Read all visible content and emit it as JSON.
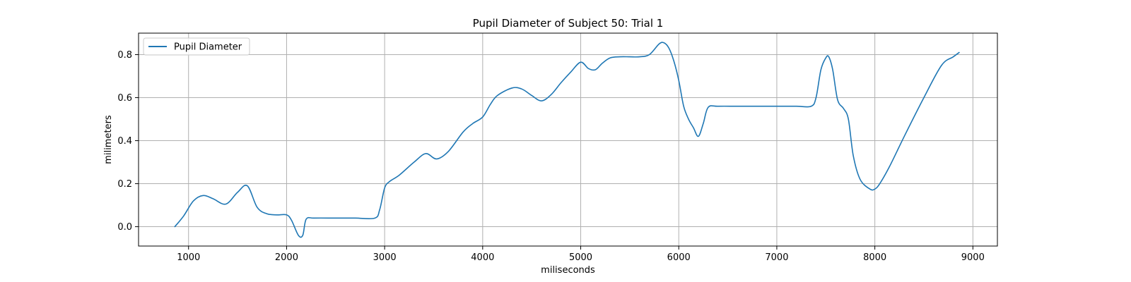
{
  "chart_data": {
    "type": "line",
    "title": "Pupil Diameter of Subject 50: Trial 1",
    "xlabel": "miliseconds",
    "ylabel": "milimeters",
    "xlim": [
      490,
      9250
    ],
    "ylim": [
      -0.09,
      0.9
    ],
    "xticks": [
      1000,
      2000,
      3000,
      4000,
      5000,
      6000,
      7000,
      8000,
      9000
    ],
    "yticks": [
      0.0,
      0.2,
      0.4,
      0.6,
      0.8
    ],
    "xtick_labels": [
      "1000",
      "2000",
      "3000",
      "4000",
      "5000",
      "6000",
      "7000",
      "8000",
      "9000"
    ],
    "ytick_labels": [
      "0.0",
      "0.2",
      "0.4",
      "0.6",
      "0.8"
    ],
    "grid": true,
    "legend_position": "top-left",
    "color": "#1f77b4",
    "series": [
      {
        "name": "Pupil Diameter",
        "x": [
          860,
          950,
          1050,
          1150,
          1250,
          1380,
          1500,
          1600,
          1700,
          1800,
          1900,
          2000,
          2050,
          2120,
          2165,
          2200,
          2280,
          2500,
          2700,
          2900,
          2950,
          3000,
          3050,
          3150,
          3300,
          3420,
          3530,
          3650,
          3800,
          3900,
          4000,
          4080,
          4150,
          4300,
          4400,
          4500,
          4600,
          4700,
          4800,
          4900,
          5000,
          5080,
          5150,
          5220,
          5300,
          5400,
          5500,
          5600,
          5700,
          5800,
          5850,
          5900,
          5950,
          6000,
          6050,
          6100,
          6150,
          6200,
          6250,
          6300,
          6400,
          6600,
          6800,
          7000,
          7200,
          7350,
          7400,
          7450,
          7500,
          7530,
          7570,
          7620,
          7680,
          7730,
          7780,
          7850,
          7950,
          8000,
          8050,
          8150,
          8300,
          8500,
          8680,
          8800,
          8860
        ],
        "y": [
          0.0,
          0.05,
          0.12,
          0.145,
          0.13,
          0.105,
          0.16,
          0.19,
          0.09,
          0.06,
          0.055,
          0.055,
          0.03,
          -0.04,
          -0.04,
          0.035,
          0.04,
          0.04,
          0.04,
          0.04,
          0.08,
          0.18,
          0.21,
          0.24,
          0.3,
          0.34,
          0.315,
          0.35,
          0.44,
          0.48,
          0.51,
          0.57,
          0.61,
          0.645,
          0.64,
          0.61,
          0.585,
          0.615,
          0.67,
          0.72,
          0.765,
          0.735,
          0.73,
          0.76,
          0.785,
          0.79,
          0.79,
          0.79,
          0.8,
          0.85,
          0.855,
          0.83,
          0.77,
          0.68,
          0.56,
          0.5,
          0.46,
          0.42,
          0.48,
          0.555,
          0.56,
          0.56,
          0.56,
          0.56,
          0.56,
          0.56,
          0.6,
          0.73,
          0.785,
          0.79,
          0.73,
          0.59,
          0.55,
          0.5,
          0.33,
          0.22,
          0.175,
          0.175,
          0.2,
          0.28,
          0.42,
          0.6,
          0.75,
          0.79,
          0.81
        ]
      }
    ]
  }
}
